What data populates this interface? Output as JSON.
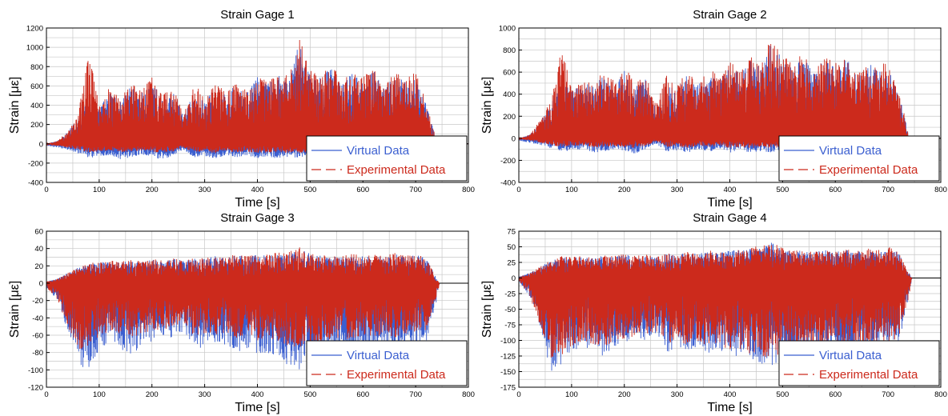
{
  "colors": {
    "virtual": "#3b5fd0",
    "experimental": "#cc2a1c",
    "grid": "#c8c8c8",
    "axis": "#000000"
  },
  "chart_data": [
    {
      "type": "line",
      "title": "Strain Gage 1",
      "xlabel": "Time [s]",
      "ylabel": "Strain [με]",
      "xlim": [
        0,
        800
      ],
      "ylim": [
        -400,
        1200
      ],
      "xticks": [
        0,
        100,
        200,
        300,
        400,
        500,
        600,
        700,
        800
      ],
      "yticks": [
        -400,
        -200,
        0,
        200,
        400,
        600,
        800,
        1000,
        1200
      ],
      "grid": true,
      "legend": "bottom-right",
      "series": [
        {
          "name": "Virtual Data",
          "x": [
            0,
            20,
            40,
            60,
            80,
            100,
            120,
            140,
            160,
            180,
            200,
            220,
            240,
            260,
            280,
            300,
            320,
            340,
            360,
            380,
            400,
            420,
            440,
            460,
            480,
            500,
            520,
            540,
            560,
            580,
            600,
            620,
            640,
            660,
            680,
            700,
            720,
            730,
            740,
            800
          ],
          "y_max": [
            0,
            30,
            120,
            280,
            520,
            380,
            540,
            450,
            600,
            520,
            660,
            480,
            560,
            300,
            570,
            460,
            590,
            500,
            620,
            540,
            700,
            630,
            720,
            650,
            1100,
            720,
            690,
            800,
            620,
            740,
            650,
            760,
            590,
            720,
            650,
            700,
            420,
            250,
            0,
            0
          ],
          "y_min": [
            -20,
            -40,
            -60,
            -100,
            -150,
            -130,
            -120,
            -160,
            -140,
            -110,
            -130,
            -170,
            -120,
            -60,
            -140,
            -130,
            -160,
            -120,
            -140,
            -120,
            -150,
            -130,
            -160,
            -140,
            -150,
            -130,
            -140,
            -120,
            -130,
            -140,
            -120,
            -130,
            -110,
            -120,
            -100,
            -110,
            -80,
            -40,
            0,
            0
          ]
        },
        {
          "name": "Experimental Data",
          "x": [
            0,
            20,
            40,
            60,
            80,
            100,
            120,
            140,
            160,
            180,
            200,
            220,
            240,
            260,
            280,
            300,
            320,
            340,
            360,
            380,
            400,
            420,
            440,
            460,
            480,
            500,
            520,
            540,
            560,
            580,
            600,
            620,
            640,
            660,
            680,
            700,
            720,
            730,
            740,
            800
          ],
          "y_max": [
            0,
            30,
            130,
            300,
            960,
            420,
            600,
            480,
            650,
            560,
            700,
            520,
            600,
            320,
            620,
            500,
            640,
            540,
            660,
            580,
            720,
            660,
            760,
            700,
            1110,
            760,
            720,
            830,
            660,
            780,
            690,
            800,
            620,
            760,
            690,
            740,
            450,
            260,
            0,
            0
          ],
          "y_min": [
            -10,
            -20,
            -40,
            -60,
            -90,
            -80,
            -70,
            -90,
            -80,
            -70,
            -80,
            -100,
            -80,
            -40,
            -90,
            -80,
            -100,
            -80,
            -90,
            -80,
            -100,
            -90,
            -100,
            -90,
            -100,
            -90,
            -90,
            -80,
            -90,
            -90,
            -80,
            -90,
            -70,
            -80,
            -70,
            -80,
            -60,
            -30,
            0,
            0
          ]
        }
      ]
    },
    {
      "type": "line",
      "title": "Strain Gage 2",
      "xlabel": "Time [s]",
      "ylabel": "Strain [με]",
      "xlim": [
        0,
        800
      ],
      "ylim": [
        -400,
        1000
      ],
      "xticks": [
        0,
        100,
        200,
        300,
        400,
        500,
        600,
        700,
        800
      ],
      "yticks": [
        -400,
        -200,
        0,
        200,
        400,
        600,
        800,
        1000
      ],
      "grid": true,
      "legend": "bottom-right",
      "series": [
        {
          "name": "Virtual Data",
          "x": [
            0,
            20,
            40,
            60,
            80,
            100,
            120,
            140,
            160,
            180,
            200,
            220,
            240,
            260,
            280,
            300,
            320,
            340,
            360,
            380,
            400,
            420,
            440,
            460,
            480,
            500,
            520,
            540,
            560,
            580,
            600,
            620,
            640,
            660,
            680,
            700,
            720,
            730,
            740,
            800
          ],
          "y_max": [
            0,
            30,
            150,
            320,
            560,
            420,
            520,
            470,
            580,
            500,
            620,
            460,
            540,
            280,
            560,
            440,
            580,
            480,
            600,
            520,
            660,
            600,
            700,
            640,
            920,
            700,
            660,
            760,
            600,
            720,
            640,
            740,
            560,
            700,
            620,
            680,
            400,
            230,
            0,
            0
          ],
          "y_min": [
            -20,
            -40,
            -60,
            -90,
            -120,
            -110,
            -100,
            -130,
            -120,
            -100,
            -110,
            -140,
            -100,
            -50,
            -120,
            -110,
            -130,
            -100,
            -120,
            -100,
            -130,
            -110,
            -130,
            -120,
            -130,
            -110,
            -120,
            -100,
            -110,
            -120,
            -100,
            -110,
            -90,
            -100,
            -90,
            -100,
            -70,
            -30,
            0,
            0
          ]
        },
        {
          "name": "Experimental Data",
          "x": [
            0,
            20,
            40,
            60,
            80,
            100,
            120,
            140,
            160,
            180,
            200,
            220,
            240,
            260,
            280,
            300,
            320,
            340,
            360,
            380,
            400,
            420,
            440,
            460,
            480,
            500,
            520,
            540,
            560,
            580,
            600,
            620,
            640,
            660,
            680,
            700,
            720,
            730,
            740,
            800
          ],
          "y_max": [
            0,
            30,
            160,
            340,
            860,
            440,
            560,
            500,
            620,
            540,
            660,
            500,
            580,
            300,
            600,
            480,
            620,
            520,
            640,
            560,
            700,
            640,
            740,
            680,
            960,
            740,
            700,
            800,
            640,
            760,
            680,
            780,
            600,
            740,
            660,
            720,
            430,
            240,
            0,
            0
          ],
          "y_min": [
            -10,
            -20,
            -40,
            -60,
            -80,
            -70,
            -70,
            -90,
            -80,
            -70,
            -80,
            -90,
            -70,
            -30,
            -80,
            -70,
            -90,
            -70,
            -80,
            -70,
            -90,
            -80,
            -90,
            -80,
            -90,
            -80,
            -80,
            -70,
            -80,
            -80,
            -70,
            -80,
            -60,
            -70,
            -60,
            -70,
            -50,
            -20,
            0,
            0
          ]
        }
      ]
    },
    {
      "type": "line",
      "title": "Strain Gage 3",
      "xlabel": "Time [s]",
      "ylabel": "Strain [με]",
      "xlim": [
        0,
        800
      ],
      "ylim": [
        -120,
        60
      ],
      "xticks": [
        0,
        100,
        200,
        300,
        400,
        500,
        600,
        700,
        800
      ],
      "yticks": [
        -120,
        -100,
        -80,
        -60,
        -40,
        -20,
        0,
        20,
        40,
        60
      ],
      "grid": true,
      "legend": "bottom-right",
      "series": [
        {
          "name": "Virtual Data",
          "x": [
            0,
            20,
            40,
            60,
            80,
            100,
            120,
            140,
            160,
            180,
            200,
            220,
            240,
            260,
            280,
            300,
            320,
            340,
            360,
            380,
            400,
            420,
            440,
            460,
            480,
            500,
            520,
            540,
            560,
            580,
            600,
            620,
            640,
            660,
            680,
            700,
            720,
            740,
            745,
            800
          ],
          "y_max": [
            2,
            5,
            12,
            18,
            22,
            24,
            25,
            24,
            26,
            25,
            27,
            26,
            28,
            26,
            30,
            28,
            32,
            29,
            33,
            30,
            34,
            32,
            35,
            36,
            40,
            34,
            32,
            31,
            30,
            33,
            31,
            32,
            30,
            34,
            31,
            33,
            30,
            5,
            0,
            0
          ],
          "y_min": [
            -5,
            -20,
            -55,
            -95,
            -100,
            -80,
            -70,
            -75,
            -85,
            -72,
            -68,
            -60,
            -65,
            -55,
            -78,
            -72,
            -75,
            -70,
            -80,
            -76,
            -85,
            -82,
            -90,
            -95,
            -100,
            -92,
            -88,
            -85,
            -82,
            -86,
            -80,
            -84,
            -78,
            -82,
            -76,
            -72,
            -70,
            -20,
            0,
            0
          ]
        },
        {
          "name": "Experimental Data",
          "x": [
            0,
            20,
            40,
            60,
            80,
            100,
            120,
            140,
            160,
            180,
            200,
            220,
            240,
            260,
            280,
            300,
            320,
            340,
            360,
            380,
            400,
            420,
            440,
            460,
            480,
            500,
            520,
            540,
            560,
            580,
            600,
            620,
            640,
            660,
            680,
            700,
            720,
            740,
            745,
            800
          ],
          "y_max": [
            2,
            5,
            12,
            18,
            23,
            25,
            26,
            25,
            27,
            26,
            28,
            27,
            29,
            27,
            31,
            29,
            33,
            30,
            34,
            31,
            35,
            33,
            36,
            37,
            42,
            35,
            33,
            32,
            31,
            34,
            32,
            33,
            31,
            35,
            32,
            34,
            31,
            5,
            0,
            0
          ],
          "y_min": [
            -5,
            -18,
            -50,
            -78,
            -74,
            -62,
            -58,
            -60,
            -66,
            -58,
            -56,
            -52,
            -55,
            -48,
            -62,
            -58,
            -60,
            -57,
            -63,
            -60,
            -66,
            -64,
            -70,
            -72,
            -75,
            -70,
            -67,
            -65,
            -63,
            -66,
            -62,
            -65,
            -60,
            -63,
            -58,
            -56,
            -54,
            -18,
            0,
            0
          ]
        }
      ]
    },
    {
      "type": "line",
      "title": "Strain Gage 4",
      "xlabel": "Time [s]",
      "ylabel": "Strain [με]",
      "xlim": [
        0,
        800
      ],
      "ylim": [
        -175,
        75
      ],
      "xticks": [
        0,
        100,
        200,
        300,
        400,
        500,
        600,
        700,
        800
      ],
      "yticks": [
        -175,
        -150,
        -125,
        -100,
        -75,
        -50,
        -25,
        0,
        25,
        50,
        75
      ],
      "grid": true,
      "legend": "bottom-right",
      "series": [
        {
          "name": "Virtual Data",
          "x": [
            0,
            20,
            40,
            60,
            80,
            100,
            120,
            140,
            160,
            180,
            200,
            220,
            240,
            260,
            280,
            300,
            320,
            340,
            360,
            380,
            400,
            420,
            440,
            460,
            480,
            500,
            520,
            540,
            560,
            580,
            600,
            620,
            640,
            660,
            680,
            700,
            720,
            740,
            745,
            800
          ],
          "y_max": [
            2,
            8,
            18,
            28,
            34,
            33,
            35,
            32,
            36,
            34,
            38,
            35,
            37,
            33,
            40,
            36,
            42,
            38,
            44,
            40,
            46,
            44,
            48,
            50,
            58,
            48,
            45,
            44,
            42,
            46,
            43,
            45,
            42,
            47,
            44,
            50,
            40,
            8,
            0,
            0
          ],
          "y_min": [
            -5,
            -30,
            -80,
            -150,
            -140,
            -120,
            -110,
            -115,
            -125,
            -110,
            -105,
            -100,
            -105,
            -90,
            -120,
            -112,
            -118,
            -110,
            -122,
            -115,
            -128,
            -124,
            -135,
            -140,
            -148,
            -136,
            -130,
            -126,
            -122,
            -128,
            -120,
            -125,
            -118,
            -122,
            -115,
            -112,
            -108,
            -30,
            0,
            0
          ]
        },
        {
          "name": "Experimental Data",
          "x": [
            0,
            20,
            40,
            60,
            80,
            100,
            120,
            140,
            160,
            180,
            200,
            220,
            240,
            260,
            280,
            300,
            320,
            340,
            360,
            380,
            400,
            420,
            440,
            460,
            480,
            500,
            520,
            540,
            560,
            580,
            600,
            620,
            640,
            660,
            680,
            700,
            720,
            740,
            745,
            800
          ],
          "y_max": [
            2,
            8,
            18,
            29,
            35,
            34,
            36,
            33,
            37,
            35,
            39,
            36,
            38,
            34,
            41,
            37,
            43,
            39,
            45,
            41,
            47,
            45,
            50,
            52,
            60,
            49,
            46,
            45,
            43,
            47,
            44,
            46,
            43,
            48,
            45,
            51,
            41,
            8,
            0,
            0
          ],
          "y_min": [
            -5,
            -28,
            -75,
            -128,
            -124,
            -110,
            -102,
            -106,
            -114,
            -102,
            -98,
            -94,
            -98,
            -85,
            -110,
            -104,
            -108,
            -102,
            -112,
            -106,
            -116,
            -114,
            -122,
            -126,
            -132,
            -124,
            -118,
            -116,
            -112,
            -116,
            -110,
            -114,
            -108,
            -112,
            -106,
            -104,
            -100,
            -28,
            0,
            0
          ]
        }
      ]
    }
  ]
}
